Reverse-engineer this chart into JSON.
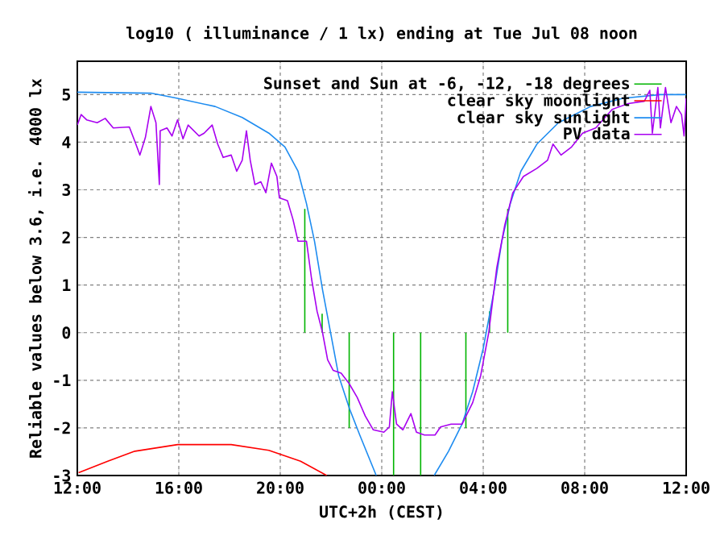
{
  "chart_data": {
    "type": "line",
    "title": "log10 ( illuminance / 1 lx) ending at Tue Jul 08 noon",
    "xlabel": "UTC+2h (CEST)",
    "ylabel": "Reliable values below 3.6, i.e. 4000 lx",
    "xlim": [
      "--07-07T12:00",
      "--07-08T12:00"
    ],
    "ylim": [
      -3,
      5.7
    ],
    "xticks": [
      {
        "value": "--07-07T12:00",
        "label": "12:00"
      },
      {
        "value": "--07-07T16:00",
        "label": "16:00"
      },
      {
        "value": "--07-07T20:00",
        "label": "20:00"
      },
      {
        "value": "--07-08T00:00",
        "label": "00:00"
      },
      {
        "value": "--07-08T04:00",
        "label": "04:00"
      },
      {
        "value": "--07-08T08:00",
        "label": "08:00"
      },
      {
        "value": "--07-08T12:00",
        "label": "12:00"
      }
    ],
    "yticks": [
      -3,
      -2,
      -1,
      0,
      1,
      2,
      3,
      4,
      5
    ],
    "grid": true,
    "legend": "top right",
    "marker": "none",
    "line_style": "solid",
    "series": [
      {
        "name": "Sunset and Sun at -6, -12, -18 degrees",
        "color": "#00b400",
        "x": [
          "--07-07T20:58",
          "--07-07T20:58"
        ],
        "values": [
          0,
          2.6
        ]
      },
      {
        "color": "#00b400",
        "x": [
          "--07-07T21:39",
          "--07-07T21:39"
        ],
        "values": [
          0,
          0.4
        ]
      },
      {
        "color": "#00b400",
        "x": [
          "--07-07T22:43",
          "--07-07T22:43"
        ],
        "values": [
          0,
          -2.0
        ]
      },
      {
        "color": "#00b400",
        "x": [
          "--07-08T00:28",
          "--07-08T00:28"
        ],
        "values": [
          0,
          -3
        ]
      },
      {
        "color": "#00b400",
        "x": [
          "--07-08T01:32",
          "--07-08T01:32"
        ],
        "values": [
          0,
          -3
        ]
      },
      {
        "color": "#00b400",
        "x": [
          "--07-08T03:19",
          "--07-08T03:19"
        ],
        "values": [
          0,
          -2.0
        ]
      },
      {
        "color": "#00b400",
        "x": [
          "--07-08T04:15",
          "--07-08T04:15"
        ],
        "values": [
          0,
          0.45
        ]
      },
      {
        "color": "#00b400",
        "x": [
          "--07-08T04:58",
          "--07-08T04:58"
        ],
        "values": [
          0,
          2.6
        ]
      },
      {
        "name": "clear sky moonlight",
        "color": "#ff0000",
        "x": [
          "--07-07T12:03",
          "--07-07T13:12",
          "--07-07T14:16",
          "--07-07T15:57",
          "--07-07T18:04",
          "--07-07T19:33",
          "--07-07T20:48",
          "--07-07T21:50"
        ],
        "values": [
          -2.94,
          -2.7,
          -2.49,
          -2.35,
          -2.35,
          -2.47,
          -2.7,
          -3.0
        ]
      },
      {
        "name": "clear sky sunlight",
        "color": "#1e8cf0",
        "x": [
          "--07-07T12:00",
          "--07-07T14:54",
          "--07-07T15:57",
          "--07-07T17:26",
          "--07-07T18:30",
          "--07-07T19:33",
          "--07-07T20:11",
          "--07-07T20:42",
          "--07-07T21:02",
          "--07-07T21:21",
          "--07-07T21:40",
          "--07-07T21:59",
          "--07-07T22:18",
          "--07-07T22:43",
          "--07-07T23:08",
          "--07-07T23:47"
        ],
        "values": [
          5.05,
          5.03,
          4.92,
          4.75,
          4.52,
          4.19,
          3.9,
          3.39,
          2.71,
          1.92,
          0.9,
          0.0,
          -0.9,
          -1.58,
          -2.15,
          -3.0
        ]
      },
      {
        "color": "#1e8cf0",
        "x": [
          "--07-08T02:04",
          "--07-08T02:38",
          "--07-08T03:10",
          "--07-08T03:35",
          "--07-08T04:00",
          "--07-08T04:26",
          "--07-08T04:44",
          "--07-08T05:04",
          "--07-08T05:29",
          "--07-08T06:07",
          "--07-08T06:58",
          "--07-08T08:14",
          "--07-08T09:30",
          "--07-08T10:59",
          "--07-08T12:00"
        ],
        "values": [
          -3.0,
          -2.49,
          -1.92,
          -1.24,
          -0.33,
          0.9,
          1.92,
          2.71,
          3.39,
          3.96,
          4.41,
          4.75,
          4.92,
          5.0,
          5.0
        ]
      },
      {
        "name": "PV data",
        "color": "#a800f0",
        "x": [
          "--07-07T12:00",
          "--07-07T12:09",
          "--07-07T12:22",
          "--07-07T12:47",
          "--07-07T13:06",
          "--07-07T13:25",
          "--07-07T14:03",
          "--07-07T14:16",
          "--07-07T14:28",
          "--07-07T14:41",
          "--07-07T14:54",
          "--07-07T15:06",
          "--07-07T15:14",
          "--07-07T15:16",
          "--07-07T15:32",
          "--07-07T15:44",
          "--07-07T15:57",
          "--07-07T16:10",
          "--07-07T16:22",
          "--07-07T16:48",
          "--07-07T17:00",
          "--07-07T17:19",
          "--07-07T17:32",
          "--07-07T17:45",
          "--07-07T18:04",
          "--07-07T18:17",
          "--07-07T18:30",
          "--07-07T18:40",
          "--07-07T18:49",
          "--07-07T19:00",
          "--07-07T19:14",
          "--07-07T19:26",
          "--07-07T19:39",
          "--07-07T19:52",
          "--07-07T19:58",
          "--07-07T20:17",
          "--07-07T20:30",
          "--07-07T20:42",
          "--07-07T21:02",
          "--07-07T21:14",
          "--07-07T21:27",
          "--07-07T21:40",
          "--07-07T21:52",
          "--07-07T22:05",
          "--07-07T22:24",
          "--07-07T22:43",
          "--07-07T23:02",
          "--07-07T23:21",
          "--07-07T23:40",
          "--07-08T00:05",
          "--07-08T00:18",
          "--07-08T00:25",
          "--07-08T00:35",
          "--07-08T00:50",
          "--07-08T01:09",
          "--07-08T01:22",
          "--07-08T01:41",
          "--07-08T02:06",
          "--07-08T02:19",
          "--07-08T02:44",
          "--07-08T03:10",
          "--07-08T03:35",
          "--07-08T03:54",
          "--07-08T04:13",
          "--07-08T04:32",
          "--07-08T04:51",
          "--07-08T05:10",
          "--07-08T05:35",
          "--07-08T06:07",
          "--07-08T06:32",
          "--07-08T06:45",
          "--07-08T07:04",
          "--07-08T07:29",
          "--07-08T07:55",
          "--07-08T08:26",
          "--07-08T09:05",
          "--07-08T09:43",
          "--07-08T10:21",
          "--07-08T10:34",
          "--07-08T10:40",
          "--07-08T10:53",
          "--07-08T10:59",
          "--07-08T11:11",
          "--07-08T11:24",
          "--07-08T11:37",
          "--07-08T11:49",
          "--07-08T11:55",
          "--07-08T12:00"
        ],
        "values": [
          4.36,
          4.58,
          4.47,
          4.41,
          4.5,
          4.3,
          4.32,
          4.02,
          3.73,
          4.1,
          4.75,
          4.41,
          3.11,
          4.24,
          4.3,
          4.13,
          4.47,
          4.07,
          4.36,
          4.13,
          4.19,
          4.36,
          3.96,
          3.68,
          3.73,
          3.39,
          3.62,
          4.24,
          3.62,
          3.11,
          3.17,
          2.94,
          3.56,
          3.28,
          2.83,
          2.77,
          2.38,
          1.92,
          1.92,
          1.13,
          0.45,
          0.0,
          -0.57,
          -0.79,
          -0.85,
          -1.07,
          -1.36,
          -1.75,
          -2.04,
          -2.09,
          -1.98,
          -1.24,
          -1.92,
          -2.04,
          -1.7,
          -2.09,
          -2.15,
          -2.15,
          -1.98,
          -1.92,
          -1.92,
          -1.47,
          -0.9,
          0.0,
          1.36,
          2.26,
          2.94,
          3.28,
          3.45,
          3.62,
          3.96,
          3.73,
          3.9,
          4.19,
          4.3,
          4.69,
          4.81,
          4.86,
          5.09,
          4.19,
          5.15,
          4.3,
          5.15,
          4.41,
          4.75,
          4.58,
          4.13,
          4.92
        ]
      }
    ]
  }
}
